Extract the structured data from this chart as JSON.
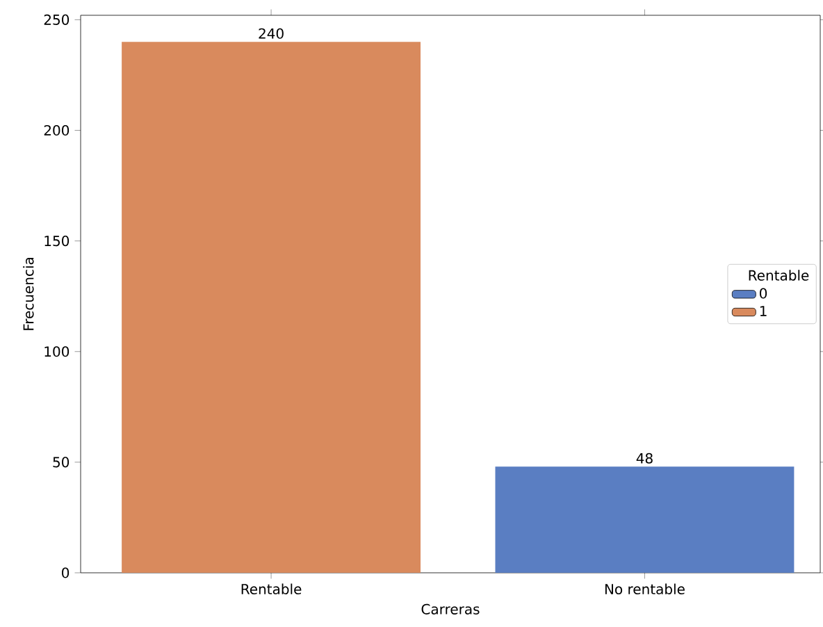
{
  "chart_data": {
    "type": "bar",
    "xlabel": "Carreras",
    "ylabel": "Frecuencia",
    "legend_title": "Rentable",
    "categories": [
      "Rentable",
      "No rentable"
    ],
    "series": [
      {
        "name": "0",
        "color": "#5a7ec2",
        "values": [
          null,
          48
        ]
      },
      {
        "name": "1",
        "color": "#d98a5d",
        "values": [
          240,
          null
        ]
      }
    ],
    "ylim": [
      0,
      252
    ],
    "yticks": [
      0,
      50,
      100,
      150,
      200,
      250
    ],
    "data_labels": true,
    "legend": "right",
    "grid": false
  }
}
